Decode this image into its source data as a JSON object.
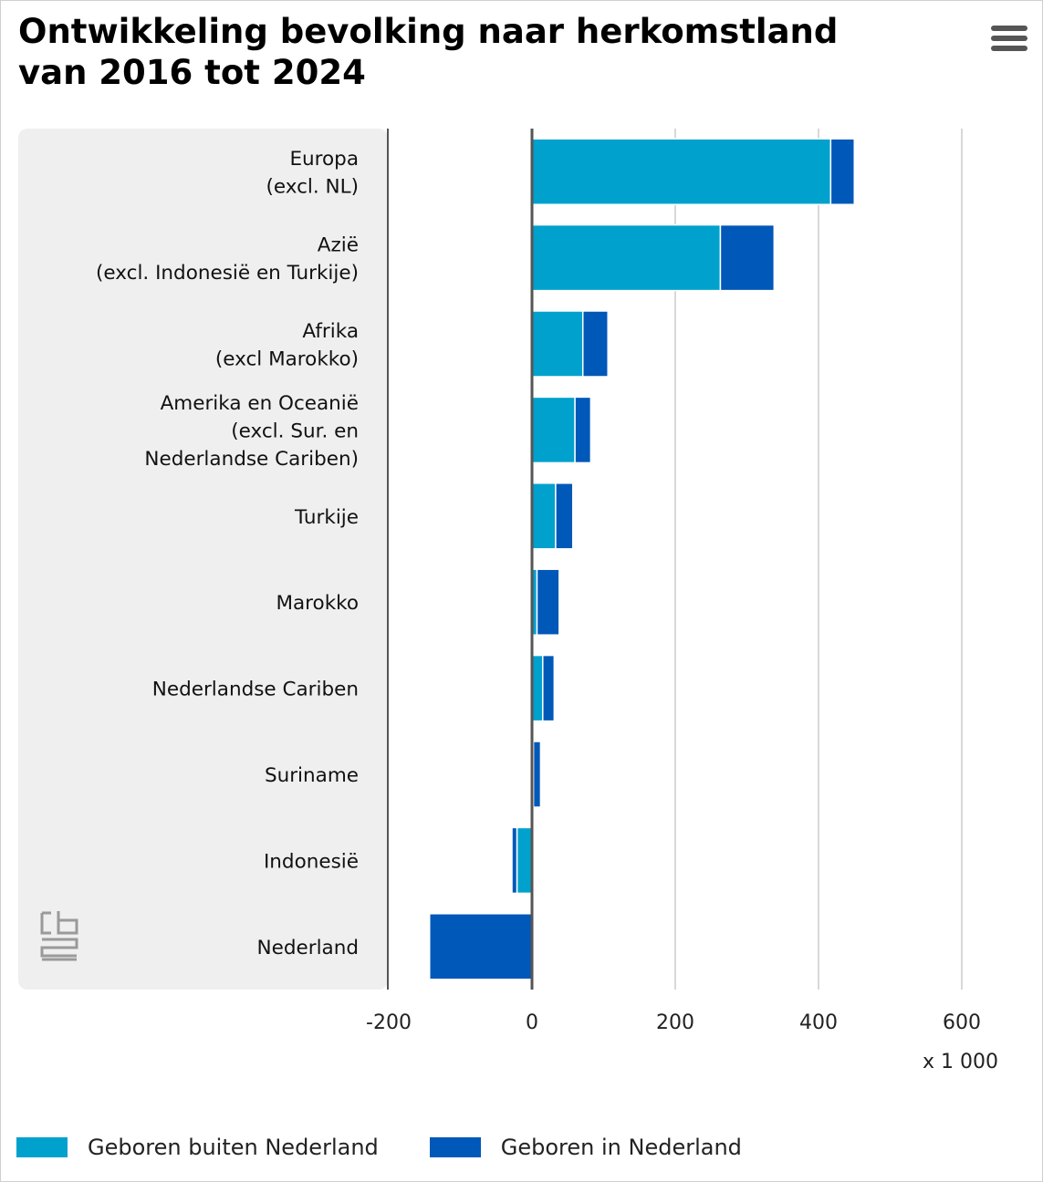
{
  "header": {
    "title": "Ontwikkeling bevolking naar herkomstland van 2016 tot 2024",
    "menu_icon": "hamburger-menu-icon"
  },
  "logo": {
    "icon": "cbs-logo-icon"
  },
  "chart_data": {
    "type": "bar",
    "orientation": "horizontal",
    "stacked": true,
    "title": "Ontwikkeling bevolking naar herkomstland van 2016 tot 2024",
    "categories": [
      [
        "Europa",
        "(excl. NL)"
      ],
      [
        "Azië",
        "(excl. Indonesië en Turkije)"
      ],
      [
        "Afrika",
        "(excl Marokko)"
      ],
      [
        "Amerika en Oceanië",
        "(excl. Sur. en",
        "Nederlandse Cariben)"
      ],
      [
        "Turkije"
      ],
      [
        "Marokko"
      ],
      [
        "Nederlandse Cariben"
      ],
      [
        "Suriname"
      ],
      [
        "Indonesië"
      ],
      [
        "Nederland"
      ]
    ],
    "series": [
      {
        "name": "Geboren buiten Nederland",
        "color": "#00a1cd",
        "values": [
          417,
          263,
          71,
          60,
          33,
          7,
          15,
          2,
          -21,
          0
        ]
      },
      {
        "name": "Geboren in Nederland",
        "color": "#0058b8",
        "values": [
          33,
          75,
          35,
          22,
          24,
          31,
          16,
          10,
          -7,
          -143
        ]
      }
    ],
    "xlim": [
      -200,
      600
    ],
    "xticks": [
      "-200",
      "0",
      "200",
      "400",
      "600"
    ],
    "xtick_values": [
      -200,
      0,
      200,
      400,
      600
    ],
    "unit_label": "x 1 000",
    "grid": true,
    "legend_position": "bottom"
  }
}
